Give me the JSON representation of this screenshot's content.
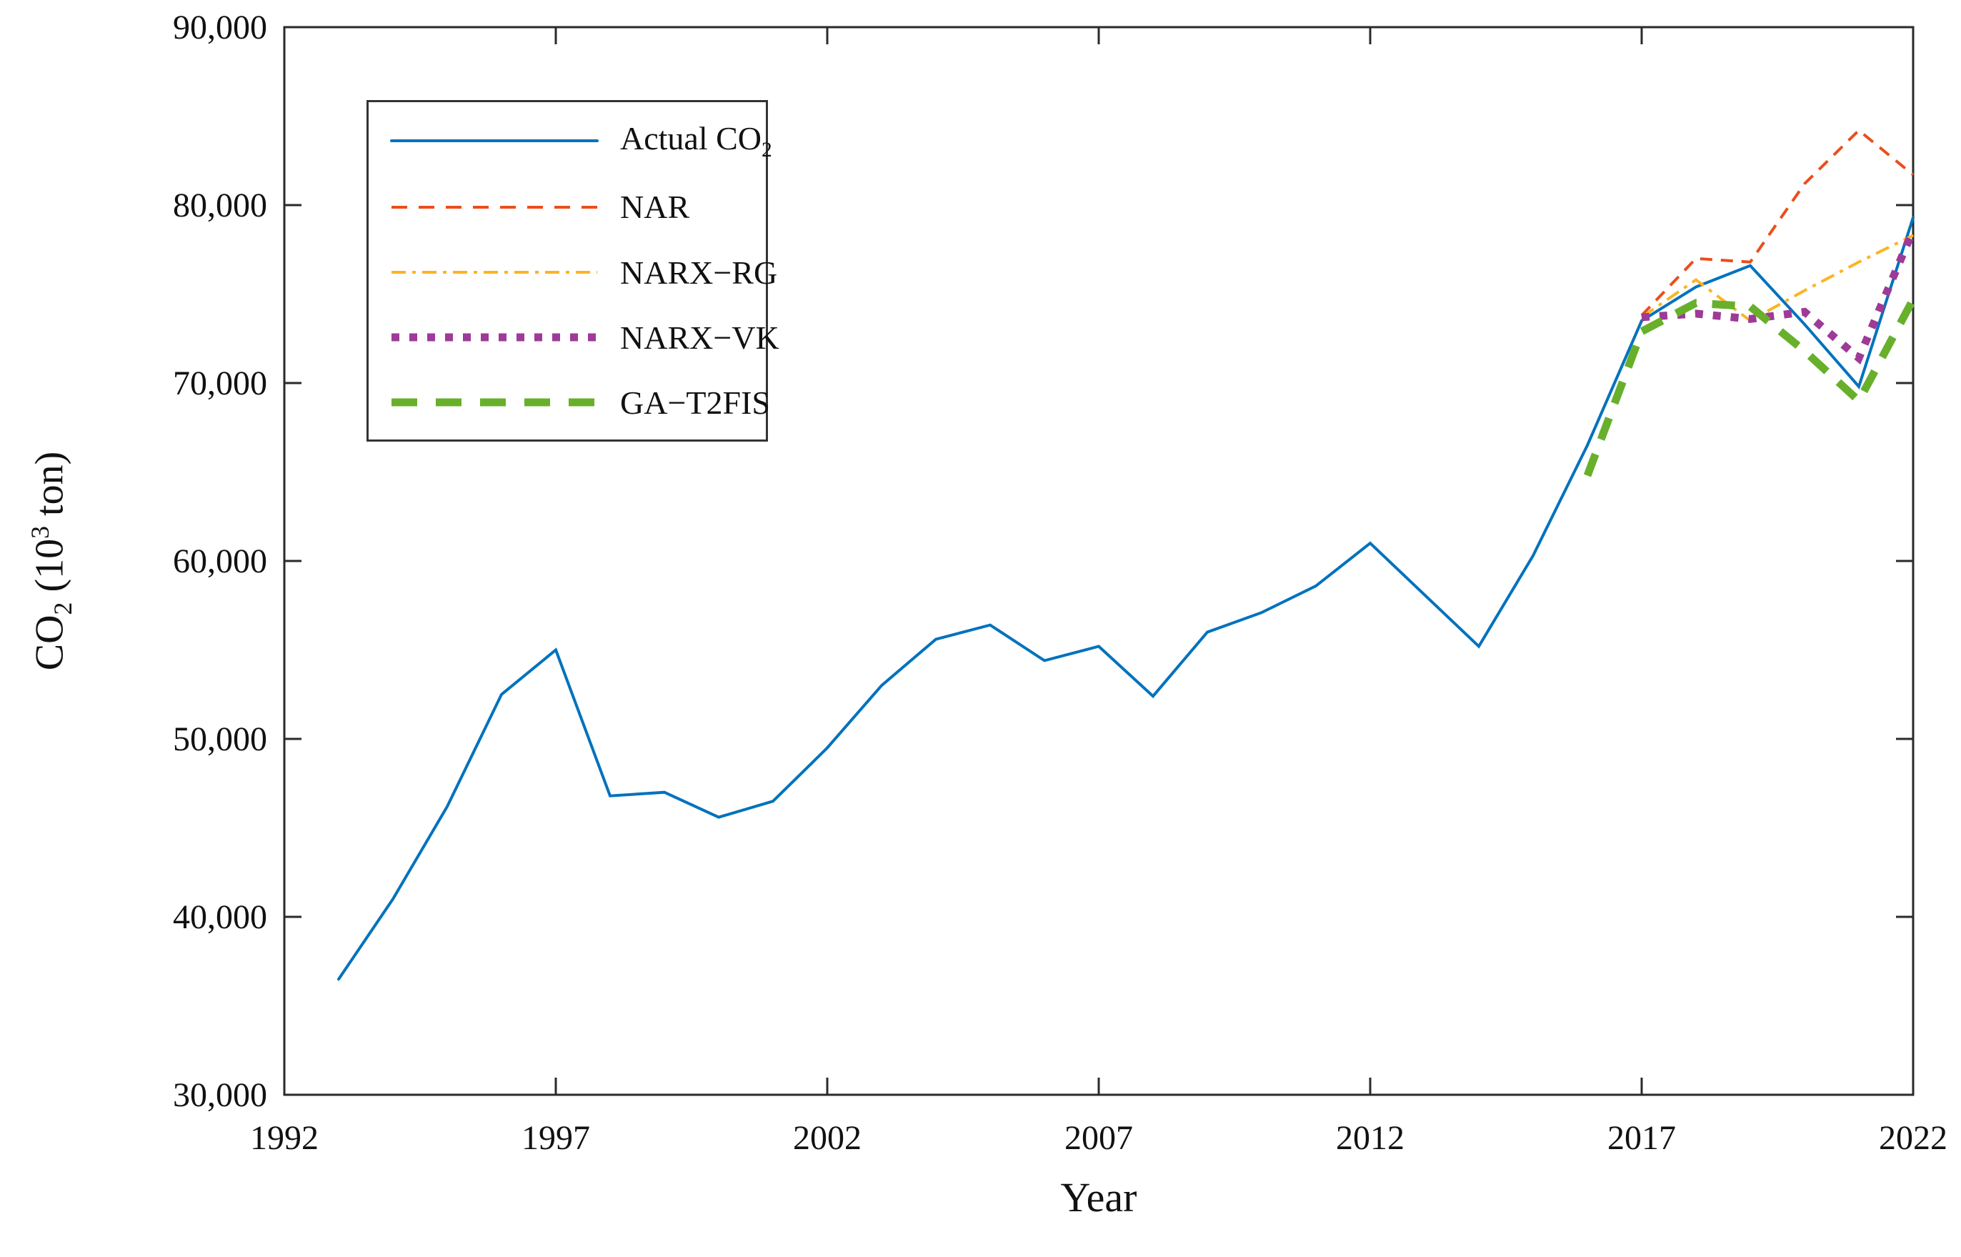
{
  "figure": {
    "background": "#ffffff",
    "axes_color": "#2a2a2a"
  },
  "labels": {
    "xlabel": "Year",
    "ylabel_pre": "CO",
    "ylabel_sub": "2",
    "ylabel_mid": " (10",
    "ylabel_sup": "3",
    "ylabel_post": " ton)"
  },
  "chart_data": {
    "type": "line",
    "title": "",
    "xlabel": "Year",
    "ylabel": "CO2 (10^3 ton)",
    "xlim": [
      1992,
      2022
    ],
    "ylim": [
      30000,
      90000
    ],
    "grid": false,
    "box": true,
    "tick_direction": "in",
    "legend_position": "upper-left-inside",
    "xticks": [
      1992,
      1997,
      2002,
      2007,
      2012,
      2017,
      2022
    ],
    "xtick_labels": [
      "1992",
      "1997",
      "2002",
      "2007",
      "2012",
      "2017",
      "2022"
    ],
    "yticks": [
      30000,
      40000,
      50000,
      60000,
      70000,
      80000,
      90000
    ],
    "ytick_labels": [
      "30,000",
      "40,000",
      "50,000",
      "60,000",
      "70,000",
      "80,000",
      "90,000"
    ],
    "series": [
      {
        "name": "Actual CO2",
        "legend_main": "Actual CO",
        "legend_sub": "2",
        "color": "#0072BD",
        "style": "solid",
        "x": [
          1993,
          1994,
          1995,
          1996,
          1997,
          1998,
          1999,
          2000,
          2001,
          2002,
          2003,
          2004,
          2005,
          2006,
          2007,
          2008,
          2009,
          2010,
          2011,
          2012,
          2013,
          2014,
          2015,
          2016,
          2017,
          2018,
          2019,
          2020,
          2021,
          2022
        ],
        "y": [
          36500,
          41000,
          46200,
          52500,
          55000,
          46800,
          47000,
          45600,
          46500,
          49500,
          53000,
          55600,
          56400,
          54400,
          55200,
          52400,
          56000,
          57100,
          58600,
          61000,
          58100,
          55200,
          60300,
          66500,
          73500,
          75400,
          76600,
          73300,
          69800,
          79300
        ]
      },
      {
        "name": "NAR",
        "legend_main": "NAR",
        "legend_sub": "",
        "color": "#EB4E1C",
        "style": "dash",
        "x": [
          2017,
          2018,
          2019,
          2020,
          2021,
          2022
        ],
        "y": [
          73800,
          77000,
          76800,
          81200,
          84200,
          81700
        ]
      },
      {
        "name": "NARX-RG",
        "legend_main": "NARX−RG",
        "legend_sub": "",
        "color": "#FCB423",
        "style": "dashdot",
        "x": [
          2017,
          2018,
          2019,
          2020,
          2021,
          2022
        ],
        "y": [
          73700,
          75800,
          73500,
          75200,
          76800,
          78300
        ]
      },
      {
        "name": "NARX-VK",
        "legend_main": "NARX−VK",
        "legend_sub": "",
        "color": "#9E3A97",
        "style": "dotted-thick",
        "x": [
          2017,
          2018,
          2019,
          2020,
          2021,
          2022
        ],
        "y": [
          73700,
          73900,
          73600,
          74000,
          71400,
          78600
        ]
      },
      {
        "name": "GA-T2FIS",
        "legend_main": "GA−T2FIS",
        "legend_sub": "",
        "color": "#68B02B",
        "style": "longdash-thick",
        "x": [
          2016,
          2017,
          2018,
          2019,
          2020,
          2021,
          2022
        ],
        "y": [
          64800,
          72900,
          74500,
          74300,
          71800,
          69000,
          74700
        ]
      }
    ]
  }
}
